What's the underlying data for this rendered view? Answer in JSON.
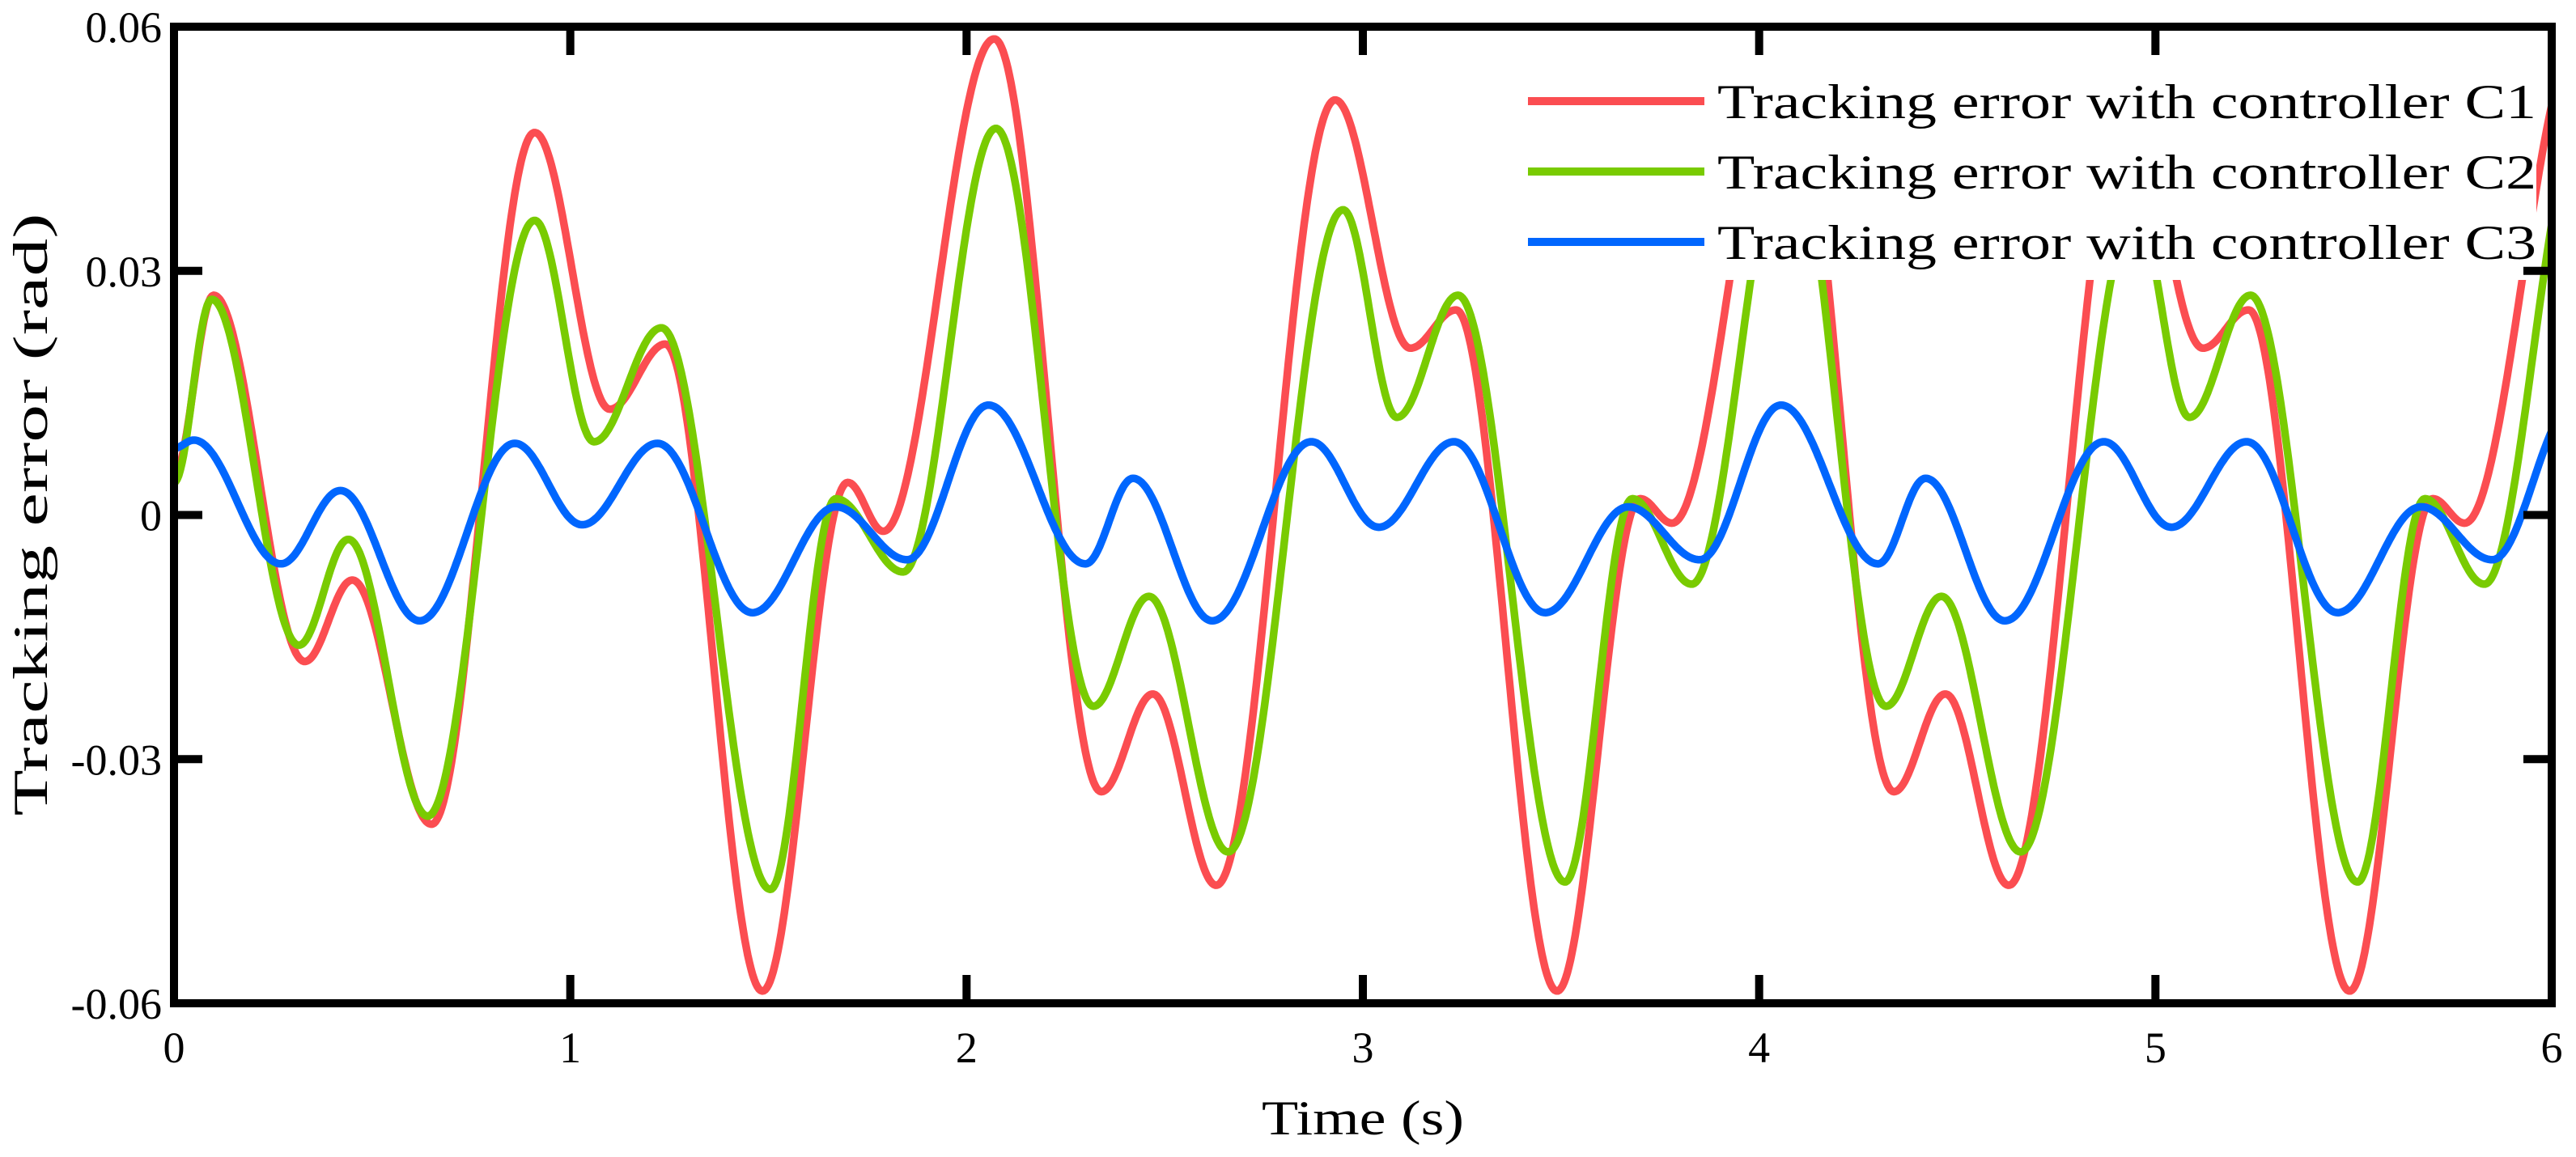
{
  "figure": {
    "background": "#FFFFFF",
    "plot_box_color": "#000000"
  },
  "axes": {
    "xlabel": "Time (s)",
    "ylabel": "Tracking error (rad)",
    "x_tick_labels": [
      "0",
      "1",
      "2",
      "3",
      "4",
      "5",
      "6"
    ],
    "y_tick_labels": [
      "0.06",
      "0.03",
      "0",
      "-0.03",
      "-0.06"
    ]
  },
  "chart_data": {
    "type": "line",
    "title": "",
    "xlabel": "Time (s)",
    "ylabel": "Tracking error (rad)",
    "xlim": [
      0,
      6
    ],
    "ylim": [
      -0.06,
      0.06
    ],
    "x_ticks": [
      0,
      1,
      2,
      3,
      4,
      5,
      6
    ],
    "y_ticks": [
      0.06,
      0.03,
      0,
      -0.03,
      -0.06
    ],
    "grid": false,
    "legend_position": "top-right",
    "legend_background": "#FFFFFF",
    "interpolation": "cosine easing through listed extrema (t seconds, value rad)",
    "series": [
      {
        "name": "C1",
        "label": "Tracking error with controller C1",
        "color": "#FB4D51",
        "keypoints": [
          [
            0,
            0.005
          ],
          [
            0.1,
            0.027
          ],
          [
            0.33,
            -0.018
          ],
          [
            0.45,
            -0.008
          ],
          [
            0.65,
            -0.038
          ],
          [
            0.91,
            0.047
          ],
          [
            1.1,
            0.013
          ],
          [
            1.24,
            0.021
          ],
          [
            1.485,
            -0.0585
          ],
          [
            1.7,
            0.004
          ],
          [
            1.79,
            -0.002
          ],
          [
            2.07,
            0.0585
          ],
          [
            2.34,
            -0.034
          ],
          [
            2.47,
            -0.022
          ],
          [
            2.63,
            -0.0455
          ],
          [
            2.93,
            0.051
          ],
          [
            3.12,
            0.0205
          ],
          [
            3.235,
            0.0252
          ],
          [
            3.49,
            -0.0585
          ],
          [
            3.7,
            0.002
          ],
          [
            3.78,
            -0.001
          ],
          [
            4.07,
            0.0585
          ],
          [
            4.34,
            -0.034
          ],
          [
            4.47,
            -0.022
          ],
          [
            4.63,
            -0.0455
          ],
          [
            4.93,
            0.051
          ],
          [
            5.12,
            0.0205
          ],
          [
            5.235,
            0.0252
          ],
          [
            5.49,
            -0.0585
          ],
          [
            5.7,
            0.002
          ],
          [
            5.78,
            -0.001
          ],
          [
            6.07,
            0.0585
          ]
        ]
      },
      {
        "name": "C2",
        "label": "Tracking error with controller C2",
        "color": "#79CB01",
        "keypoints": [
          [
            0,
            0.004
          ],
          [
            0.095,
            0.0265
          ],
          [
            0.315,
            -0.016
          ],
          [
            0.44,
            -0.003
          ],
          [
            0.64,
            -0.037
          ],
          [
            0.91,
            0.0362
          ],
          [
            1.06,
            0.009
          ],
          [
            1.23,
            0.023
          ],
          [
            1.505,
            -0.046
          ],
          [
            1.67,
            0.002
          ],
          [
            1.84,
            -0.007
          ],
          [
            2.074,
            0.0475
          ],
          [
            2.32,
            -0.0235
          ],
          [
            2.46,
            -0.01
          ],
          [
            2.66,
            -0.0414
          ],
          [
            2.95,
            0.0375
          ],
          [
            3.086,
            0.012
          ],
          [
            3.24,
            0.027
          ],
          [
            3.51,
            -0.0451
          ],
          [
            3.68,
            0.002
          ],
          [
            3.83,
            -0.0085
          ],
          [
            4.074,
            0.0475
          ],
          [
            4.32,
            -0.0235
          ],
          [
            4.46,
            -0.01
          ],
          [
            4.66,
            -0.0414
          ],
          [
            4.95,
            0.0375
          ],
          [
            5.086,
            0.012
          ],
          [
            5.24,
            0.027
          ],
          [
            5.51,
            -0.0451
          ],
          [
            5.68,
            0.002
          ],
          [
            5.83,
            -0.0085
          ],
          [
            6.074,
            0.0475
          ]
        ]
      },
      {
        "name": "C3",
        "label": "Tracking error with controller C3",
        "color": "#0066FE",
        "keypoints": [
          [
            0,
            0.0082
          ],
          [
            0.05,
            0.0092
          ],
          [
            0.27,
            -0.006
          ],
          [
            0.42,
            0.003
          ],
          [
            0.62,
            -0.013
          ],
          [
            0.86,
            0.0088
          ],
          [
            1.03,
            -0.0012
          ],
          [
            1.22,
            0.0088
          ],
          [
            1.46,
            -0.012
          ],
          [
            1.67,
            0.001
          ],
          [
            1.85,
            -0.0055
          ],
          [
            2.055,
            0.0135
          ],
          [
            2.3,
            -0.006
          ],
          [
            2.42,
            0.0045
          ],
          [
            2.62,
            -0.013
          ],
          [
            2.87,
            0.009
          ],
          [
            3.04,
            -0.0015
          ],
          [
            3.23,
            0.009
          ],
          [
            3.46,
            -0.012
          ],
          [
            3.67,
            0.001
          ],
          [
            3.85,
            -0.0055
          ],
          [
            4.055,
            0.0135
          ],
          [
            4.3,
            -0.006
          ],
          [
            4.42,
            0.0045
          ],
          [
            4.62,
            -0.013
          ],
          [
            4.87,
            0.009
          ],
          [
            5.04,
            -0.0015
          ],
          [
            5.23,
            0.009
          ],
          [
            5.46,
            -0.012
          ],
          [
            5.67,
            0.001
          ],
          [
            5.85,
            -0.0055
          ],
          [
            6.055,
            0.0135
          ]
        ]
      }
    ]
  }
}
